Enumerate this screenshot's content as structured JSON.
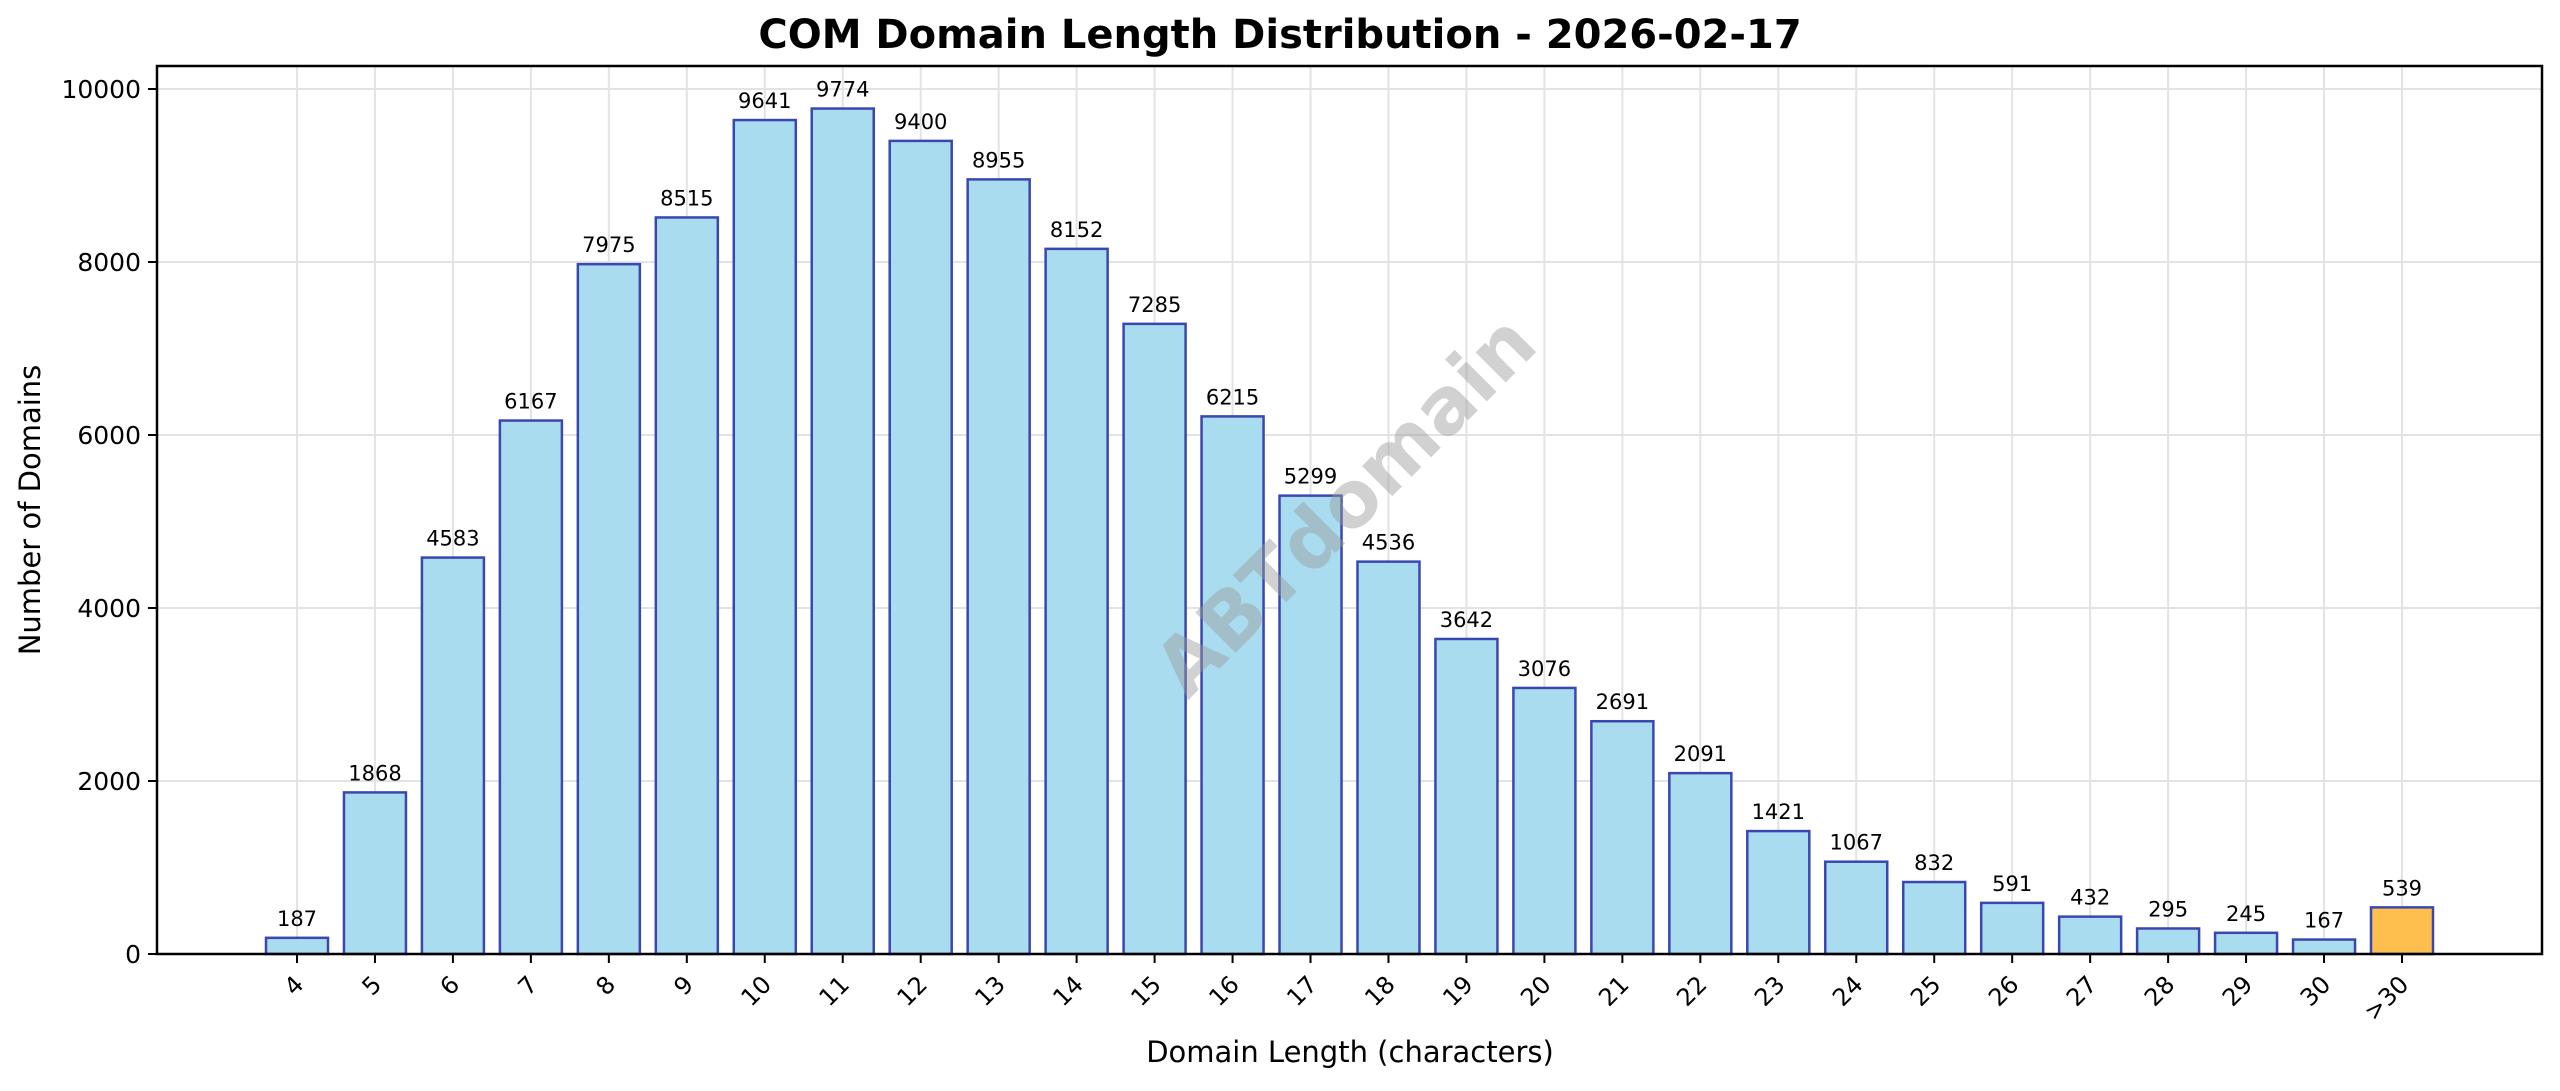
{
  "chart_data": {
    "type": "bar",
    "title": "COM Domain Length Distribution - 2026-02-17",
    "xlabel": "Domain Length (characters)",
    "ylabel": "Number of Domains",
    "categories": [
      "4",
      "5",
      "6",
      "7",
      "8",
      "9",
      "10",
      "11",
      "12",
      "13",
      "14",
      "15",
      "16",
      "17",
      "18",
      "19",
      "20",
      "21",
      "22",
      "23",
      "24",
      "25",
      "26",
      "27",
      "28",
      "29",
      "30",
      ">30"
    ],
    "values": [
      187,
      1868,
      4583,
      6167,
      7975,
      8515,
      9641,
      9774,
      9400,
      8955,
      8152,
      7285,
      6215,
      5299,
      4536,
      3642,
      3076,
      2691,
      2091,
      1421,
      1067,
      832,
      591,
      432,
      295,
      245,
      167,
      539
    ],
    "ylim": [
      0,
      10263
    ],
    "yticks": [
      0,
      2000,
      4000,
      6000,
      8000,
      10000
    ],
    "grid": true,
    "legend": null,
    "bar_labels": true,
    "highlight_category": ">30",
    "colors": {
      "bar_fill": "#a9dcef",
      "bar_edge": "#3b47b0",
      "highlight_fill": "#ffbf4f",
      "grid": "#e3e3e3",
      "axis": "#000000"
    },
    "watermark": "ABTdomain"
  }
}
